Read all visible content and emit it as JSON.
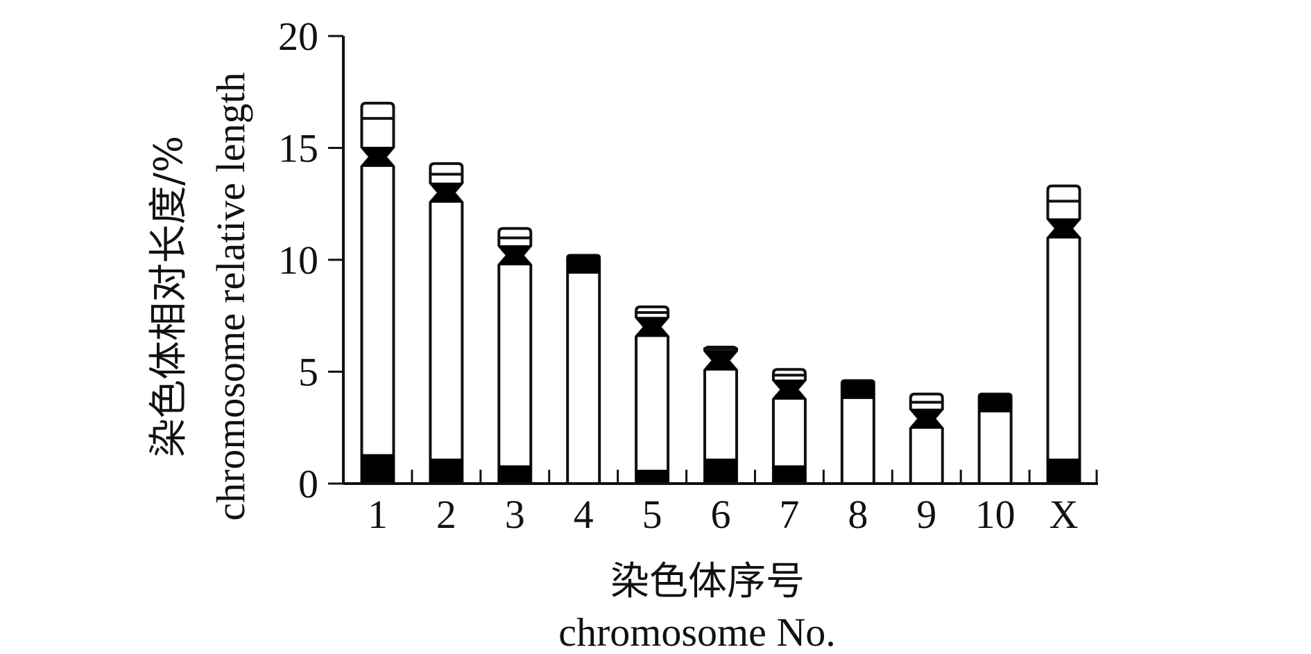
{
  "chart_data": {
    "type": "bar",
    "title": "",
    "categories": [
      "1",
      "2",
      "3",
      "4",
      "5",
      "6",
      "7",
      "8",
      "9",
      "10",
      "X"
    ],
    "values": [
      17.0,
      14.3,
      11.4,
      10.2,
      7.9,
      6.1,
      5.1,
      4.6,
      4.0,
      4.0,
      13.3
    ],
    "centromere_positions": [
      14.6,
      13.0,
      10.2,
      10.2,
      7.0,
      5.5,
      4.2,
      4.6,
      2.9,
      4.0,
      11.4
    ],
    "secondary_constriction_positions": [
      1.3,
      1.1,
      0.8,
      null,
      0.6,
      1.1,
      0.8,
      null,
      null,
      null,
      1.1
    ],
    "ylim": [
      0,
      20
    ],
    "yticks": [
      "0",
      "5",
      "10",
      "15",
      "20"
    ],
    "ylabel_cn": "染色体相对长度/%",
    "ylabel_en": "chromosome relative length",
    "xlabel_cn": "染色体序号",
    "xlabel_en": "chromosome No.",
    "grid": false,
    "legend": "none"
  }
}
